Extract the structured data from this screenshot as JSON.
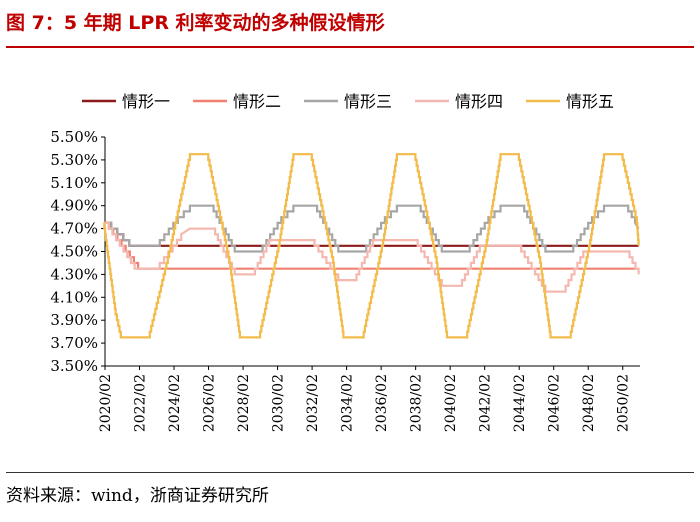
{
  "header": {
    "title": "图 7：5 年期 LPR 利率变动的多种假设情形"
  },
  "footer": {
    "source": "资料来源：wind，浙商证券研究所"
  },
  "chart_data": {
    "type": "line",
    "title": "图 7：5 年期 LPR 利率变动的多种假设情形",
    "xlabel": "",
    "ylabel": "",
    "ylim": [
      3.5,
      5.5
    ],
    "x_start": "2020/02",
    "x_end": "2051/02",
    "legend_position": "top",
    "grid": false,
    "y_ticks": [
      "3.50%",
      "3.70%",
      "3.90%",
      "4.10%",
      "4.30%",
      "4.50%",
      "4.70%",
      "4.90%",
      "5.10%",
      "5.30%",
      "5.50%"
    ],
    "x_ticks": [
      "2020/02",
      "2022/02",
      "2024/02",
      "2026/02",
      "2028/02",
      "2030/02",
      "2032/02",
      "2034/02",
      "2036/02",
      "2038/02",
      "2040/02",
      "2042/02",
      "2044/02",
      "2046/02",
      "2048/02",
      "2050/02"
    ],
    "series": [
      {
        "name": "情形一",
        "color": "#8b1a1a",
        "points": [
          [
            2020.08,
            4.75
          ],
          [
            2021.5,
            4.55
          ],
          [
            2051.0,
            4.55
          ]
        ]
      },
      {
        "name": "情形二",
        "color": "#f08070",
        "points": [
          [
            2020.08,
            4.75
          ],
          [
            2022.0,
            4.35
          ],
          [
            2051.0,
            4.35
          ]
        ]
      },
      {
        "name": "情形三",
        "color": "#a6a6a6",
        "points": [
          [
            2020.08,
            4.75
          ],
          [
            2021.5,
            4.55
          ],
          [
            2023.0,
            4.55
          ],
          [
            2024.3,
            4.8
          ],
          [
            2025.0,
            4.9
          ],
          [
            2026.2,
            4.9
          ],
          [
            2026.9,
            4.7
          ],
          [
            2027.6,
            4.5
          ],
          [
            2029.0,
            4.5
          ],
          [
            2030.3,
            4.8
          ],
          [
            2031.0,
            4.9
          ],
          [
            2032.2,
            4.9
          ],
          [
            2032.9,
            4.7
          ],
          [
            2033.6,
            4.5
          ],
          [
            2035.0,
            4.5
          ],
          [
            2036.3,
            4.8
          ],
          [
            2037.0,
            4.9
          ],
          [
            2038.2,
            4.9
          ],
          [
            2038.9,
            4.7
          ],
          [
            2039.6,
            4.5
          ],
          [
            2041.0,
            4.5
          ],
          [
            2042.3,
            4.8
          ],
          [
            2043.0,
            4.9
          ],
          [
            2044.2,
            4.9
          ],
          [
            2044.9,
            4.7
          ],
          [
            2045.6,
            4.5
          ],
          [
            2047.0,
            4.5
          ],
          [
            2048.3,
            4.8
          ],
          [
            2049.0,
            4.9
          ],
          [
            2050.2,
            4.9
          ],
          [
            2050.8,
            4.75
          ],
          [
            2051.0,
            4.7
          ]
        ]
      },
      {
        "name": "情形四",
        "color": "#f5b8b0",
        "points": [
          [
            2020.08,
            4.75
          ],
          [
            2021.8,
            4.35
          ],
          [
            2023.0,
            4.35
          ],
          [
            2024.5,
            4.65
          ],
          [
            2025.0,
            4.7
          ],
          [
            2026.3,
            4.7
          ],
          [
            2027.6,
            4.3
          ],
          [
            2028.6,
            4.3
          ],
          [
            2029.6,
            4.6
          ],
          [
            2032.0,
            4.6
          ],
          [
            2033.6,
            4.25
          ],
          [
            2034.5,
            4.25
          ],
          [
            2035.6,
            4.6
          ],
          [
            2038.0,
            4.6
          ],
          [
            2039.6,
            4.2
          ],
          [
            2040.6,
            4.2
          ],
          [
            2041.8,
            4.55
          ],
          [
            2044.0,
            4.55
          ],
          [
            2045.6,
            4.15
          ],
          [
            2046.6,
            4.15
          ],
          [
            2047.8,
            4.5
          ],
          [
            2050.3,
            4.5
          ],
          [
            2051.0,
            4.3
          ]
        ]
      },
      {
        "name": "情形五",
        "color": "#f2bb4a",
        "points": [
          [
            2020.0,
            4.75
          ],
          [
            2020.7,
            3.95
          ],
          [
            2021.0,
            3.75
          ],
          [
            2022.6,
            3.75
          ],
          [
            2023.8,
            4.5
          ],
          [
            2025.0,
            5.35
          ],
          [
            2026.0,
            5.35
          ],
          [
            2027.3,
            4.4
          ],
          [
            2027.9,
            3.75
          ],
          [
            2029.0,
            3.75
          ],
          [
            2030.2,
            4.6
          ],
          [
            2031.0,
            5.35
          ],
          [
            2032.0,
            5.35
          ],
          [
            2033.3,
            4.4
          ],
          [
            2033.9,
            3.75
          ],
          [
            2035.0,
            3.75
          ],
          [
            2036.2,
            4.6
          ],
          [
            2037.0,
            5.35
          ],
          [
            2038.0,
            5.35
          ],
          [
            2039.3,
            4.4
          ],
          [
            2039.9,
            3.75
          ],
          [
            2041.0,
            3.75
          ],
          [
            2042.2,
            4.6
          ],
          [
            2043.0,
            5.35
          ],
          [
            2044.0,
            5.35
          ],
          [
            2045.3,
            4.4
          ],
          [
            2045.9,
            3.75
          ],
          [
            2047.0,
            3.75
          ],
          [
            2048.2,
            4.6
          ],
          [
            2049.0,
            5.35
          ],
          [
            2050.0,
            5.35
          ],
          [
            2050.9,
            4.75
          ],
          [
            2051.0,
            4.55
          ]
        ]
      }
    ]
  }
}
